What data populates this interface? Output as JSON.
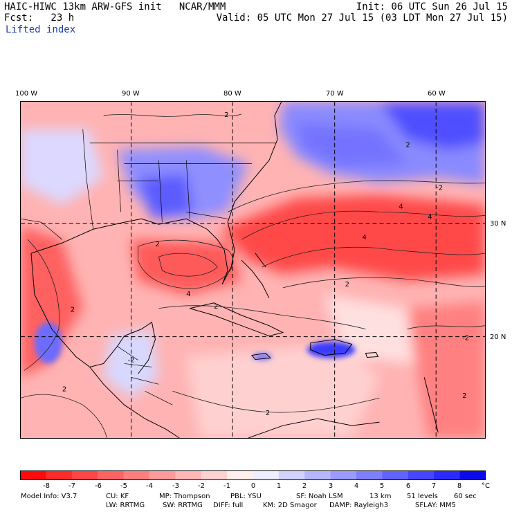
{
  "header": {
    "title_left": "HAIC-HIWC 13km ARW-GFS init   NCAR/MMM",
    "init": "Init: 06 UTC Sun 26 Jul 15",
    "fcst": "Fcst:   23 h",
    "valid": "Valid: 05 UTC Mon 27 Jul 15 (03 LDT Mon 27 Jul 15)",
    "field": "Lifted index"
  },
  "map": {
    "lon_labels": [
      "100 W",
      "90 W",
      "80 W",
      "70 W",
      "60 W"
    ],
    "lat_labels": [
      "30 N",
      "20 N"
    ],
    "contour_labels": [
      "2",
      "2",
      "4",
      "-2",
      "2",
      "4",
      "2",
      "4",
      "2",
      "4",
      "2",
      "-2",
      "-2",
      "2",
      "2",
      "2"
    ]
  },
  "legend": {
    "ticks": [
      "-8",
      "-7",
      "-6",
      "-5",
      "-4",
      "-3",
      "-2",
      "-1",
      "0",
      "1",
      "2",
      "3",
      "4",
      "5",
      "6",
      "7",
      "8"
    ],
    "unit": "°C",
    "colors": [
      "#ff0a0a",
      "#ff2a2a",
      "#ff4646",
      "#ff6262",
      "#ff7e7e",
      "#ff9a9a",
      "#ffb6b6",
      "#ffd2d2",
      "#ffeeee",
      "#eeeeff",
      "#d2d2ff",
      "#b6b6ff",
      "#9a9aff",
      "#7e7eff",
      "#6262ff",
      "#4646ff",
      "#2a2aff",
      "#0a0aee"
    ]
  },
  "model_info": {
    "line1": [
      "Model Info: V3.7",
      "CU: KF",
      "MP: Thompson",
      "PBL: YSU",
      "SF: Noah LSM",
      "13 km",
      "51 levels",
      "60 sec"
    ],
    "line2": [
      "LW: RRTMG",
      "SW: RRTMG",
      "DIFF: full",
      "KM: 2D Smagor",
      "DAMP: Rayleigh3",
      "SFLAY: MM5"
    ]
  }
}
